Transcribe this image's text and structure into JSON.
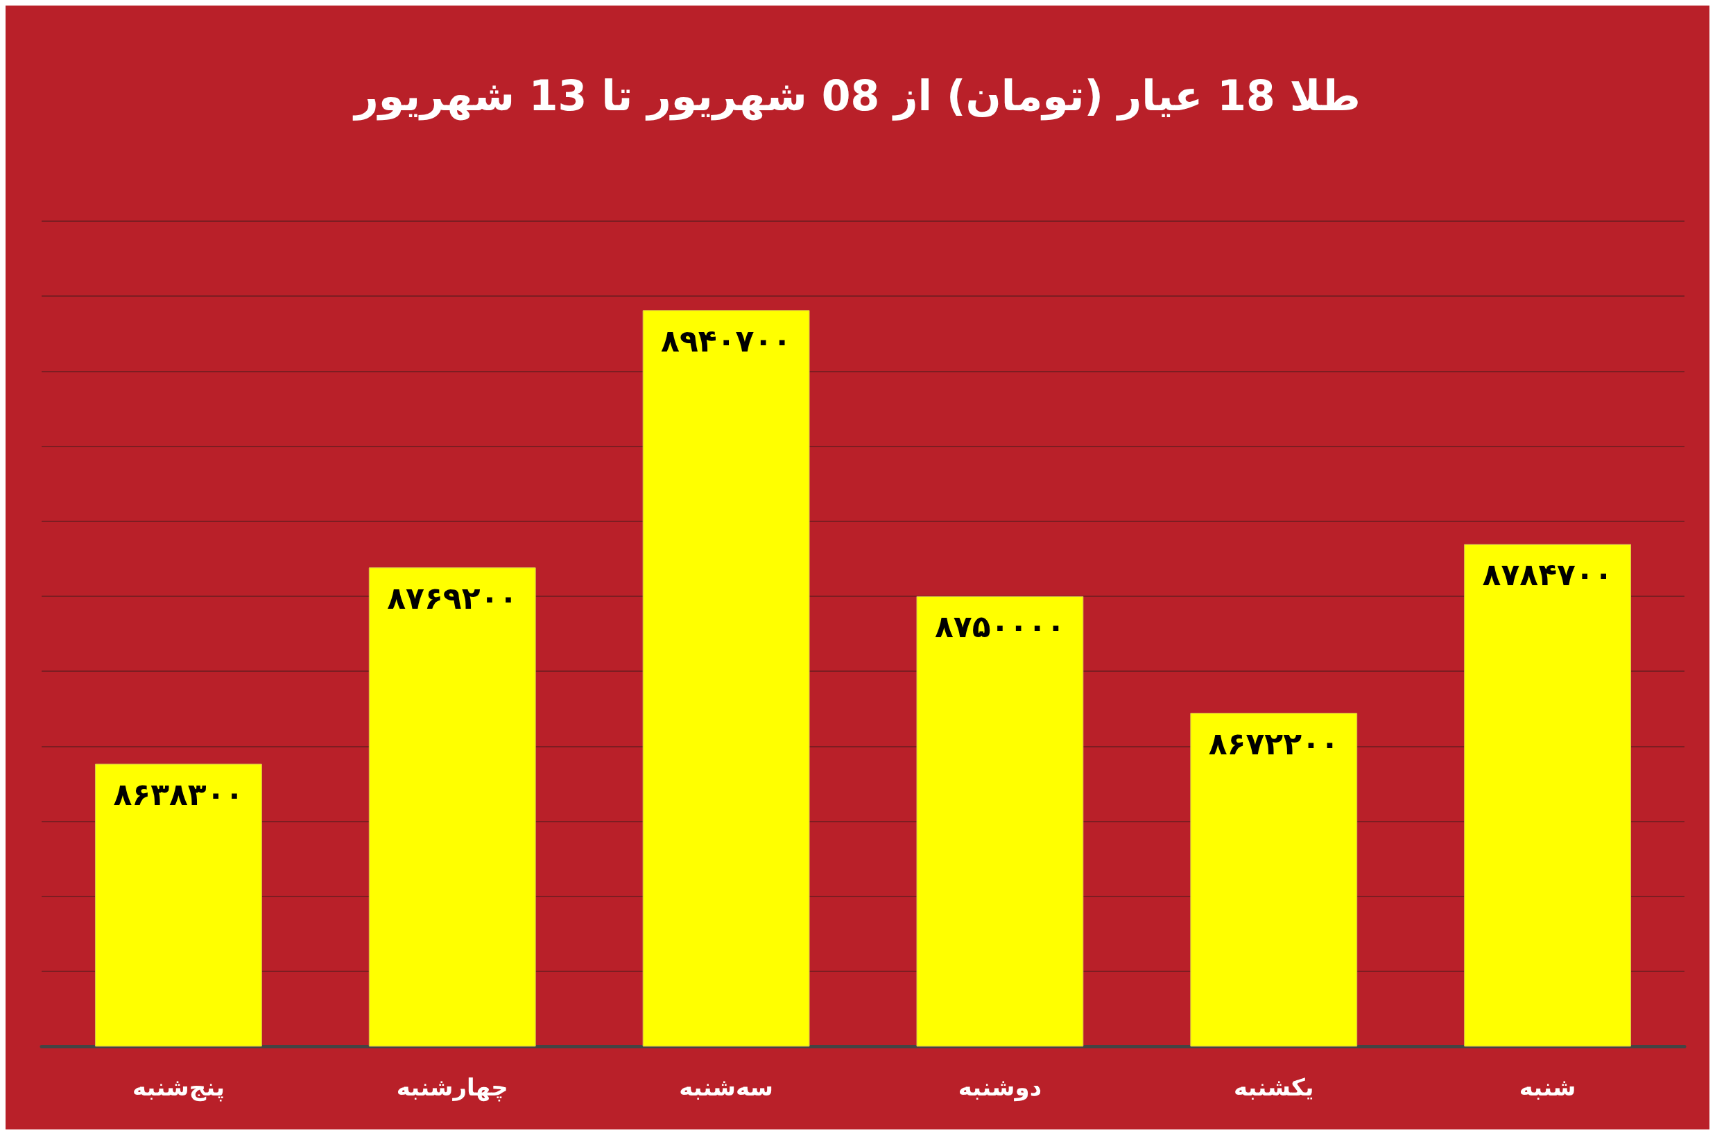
{
  "chart_data": {
    "type": "bar",
    "title": "طلا 18 عیار (تومان) از 08 شهریور تا 13 شهریور",
    "categories": [
      "پنج‌شنبه",
      "چهارشنبه",
      "سه‌شنبه",
      "دوشنبه",
      "یکشنبه",
      "شنبه"
    ],
    "values": [
      8638300,
      8769200,
      8940700,
      8750000,
      8672200,
      8784700
    ],
    "value_labels": [
      "۸۶۳۸۳۰۰",
      "۸۷۶۹۲۰۰",
      "۸۹۴۰۷۰۰",
      "۸۷۵۰۰۰۰",
      "۸۶۷۲۲۰۰",
      "۸۷۸۴۷۰۰"
    ],
    "color": "#ffff00",
    "ylim": [
      8450000,
      9000000
    ],
    "yticks": [
      8450000,
      8500000,
      8550000,
      8600000,
      8650000,
      8700000,
      8750000,
      8800000,
      8850000,
      8900000,
      8950000,
      9000000
    ],
    "tick_labels": "x",
    "grid": "y"
  }
}
